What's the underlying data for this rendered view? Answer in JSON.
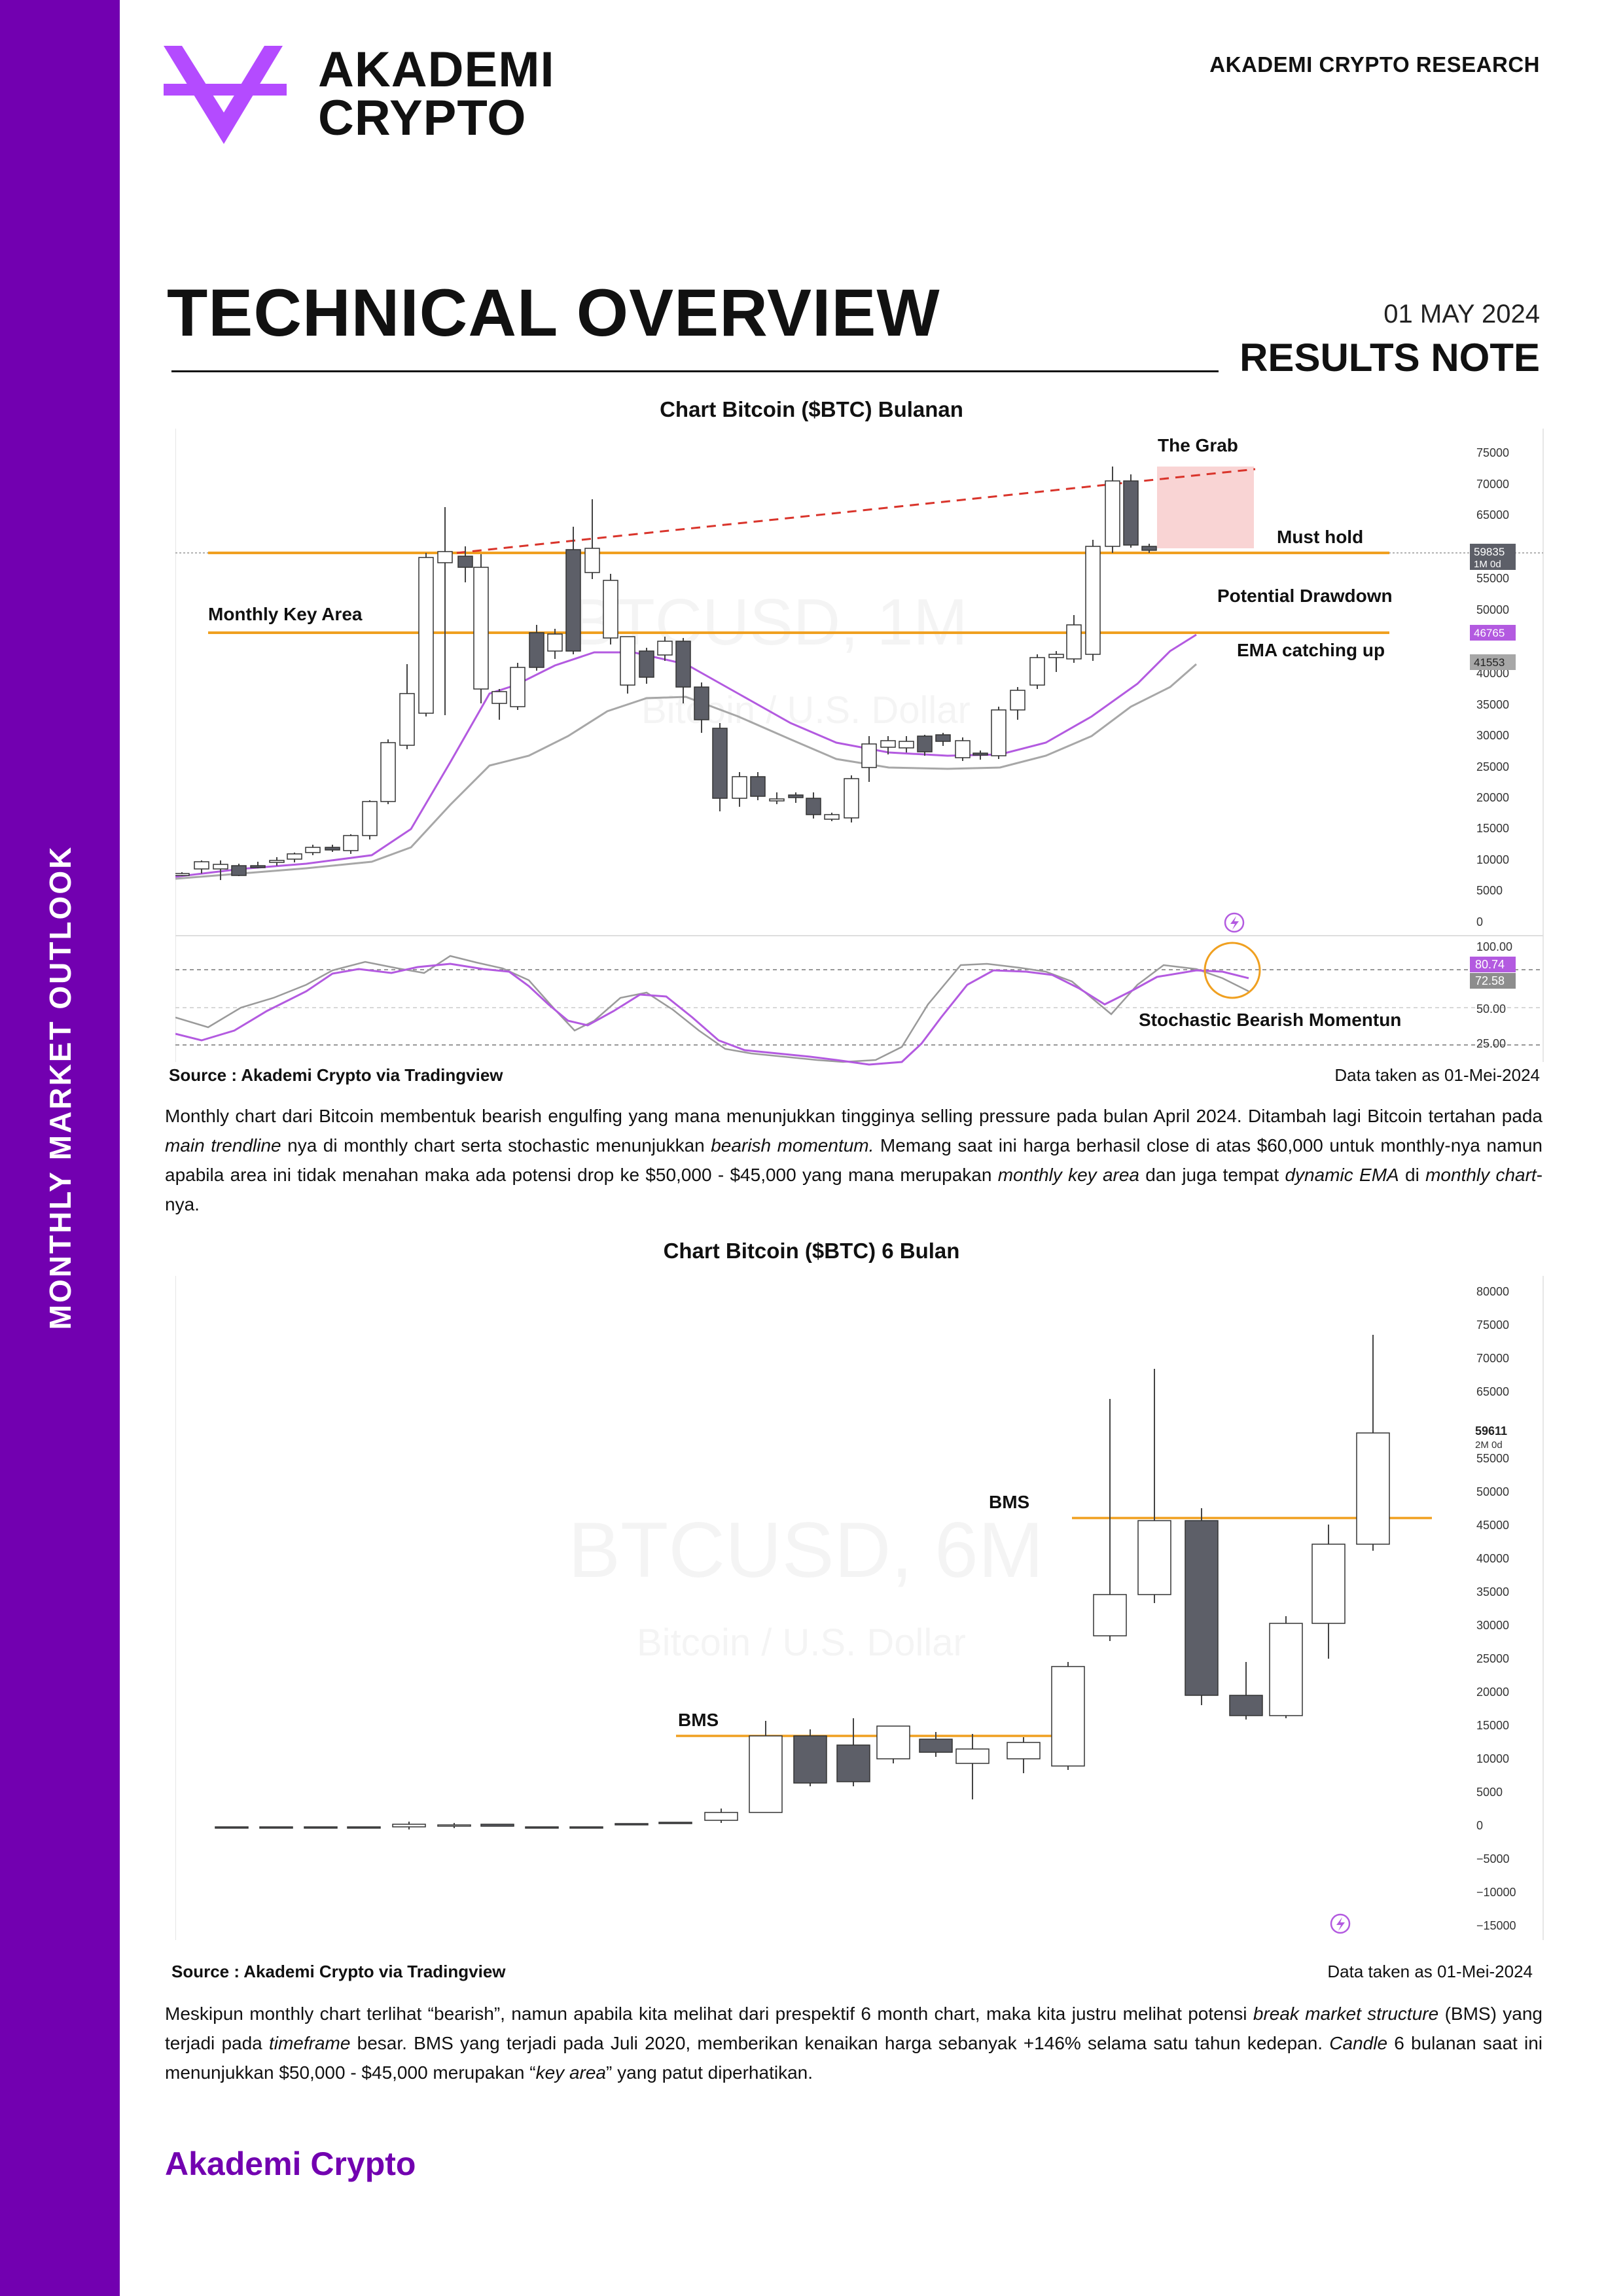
{
  "sidebar": {
    "label": "MONTHLY  MARKET OUTLOOK"
  },
  "brand": {
    "logo_line1": "AKADEMI",
    "logo_line2": "CRYPTO",
    "research": "AKADEMI CRYPTO RESEARCH",
    "footer": "Akademi Crypto"
  },
  "colors": {
    "sidebar": "#7200b0",
    "accent_orange": "#f0a020",
    "ema_purple": "#b35ae0",
    "candle_dark": "#5d5f68",
    "trend_red": "#d9342b"
  },
  "header": {
    "title": "TECHNICAL OVERVIEW",
    "date": "01 MAY 2024",
    "subtitle": "RESULTS NOTE"
  },
  "chart1": {
    "caption": "Chart Bitcoin ($BTC) Bulanan",
    "watermark_main": "BTCUSD, 1M",
    "watermark_sub": "Bitcoin / U.S. Dollar",
    "ann_grab": "The Grab",
    "ann_must_hold": "Must hold",
    "ann_monthly_key": "Monthly Key Area",
    "ann_drawdown": "Potential Drawdown",
    "ann_ema": "EMA catching up",
    "ann_stoch": "Stochastic Bearish Momentun",
    "price_ticks": [
      "75000",
      "70000",
      "65000",
      "55000",
      "50000",
      "40000",
      "35000",
      "30000",
      "25000",
      "20000",
      "15000",
      "10000",
      "5000",
      "0"
    ],
    "price_label": "59835",
    "price_label_sub": "1M 0d",
    "ema_label": "46765",
    "ema2_label": "41553",
    "stoch_ticks": [
      "100.00",
      "50.00",
      "25.00"
    ],
    "stoch_label1": "80.74",
    "stoch_label2": "72.58",
    "source": "Source : Akademi Crypto via Tradingview",
    "data_taken": "Data taken as 01-Mei-2024"
  },
  "chart2": {
    "caption": "Chart Bitcoin ($BTC) 6 Bulan",
    "watermark_main": "BTCUSD, 6M",
    "watermark_sub": "Bitcoin / U.S. Dollar",
    "ann_bms_low": "BMS",
    "ann_bms_high": "BMS",
    "price_ticks": [
      "80000",
      "75000",
      "70000",
      "65000",
      "55000",
      "50000",
      "45000",
      "40000",
      "35000",
      "30000",
      "25000",
      "20000",
      "15000",
      "10000",
      "5000",
      "0",
      "−5000",
      "−10000",
      "−15000"
    ],
    "price_label": "59611",
    "price_label_sub": "2M 0d",
    "source": "Source : Akademi Crypto via Tradingview",
    "data_taken": "Data taken as 01-Mei-2024"
  },
  "para1": {
    "t1": "Monthly chart dari Bitcoin membentuk bearish engulfing yang mana menunjukkan tingginya selling pressure pada bulan April 2024. Ditambah lagi Bitcoin tertahan pada ",
    "i1": "main trendline",
    "t2": " nya di monthly chart serta stochastic menunjukkan ",
    "i2": "bearish momentum.",
    "t3": " Memang saat ini harga berhasil close di atas $60,000 untuk monthly-nya namun apabila area ini tidak menahan maka ada potensi drop ke $50,000 - $45,000 yang mana merupakan ",
    "i3": "monthly key area",
    "t4": " dan juga tempat ",
    "i4": "dynamic EMA",
    "t5": " di ",
    "i5": "monthly chart",
    "t6": "-nya."
  },
  "para2": {
    "t1": "Meskipun monthly chart terlihat “bearish”, namun apabila kita melihat dari prespektif 6 month chart, maka kita justru melihat potensi ",
    "i1": "break market structure",
    "t2": " (BMS) yang terjadi pada ",
    "i2": "timeframe",
    "t3": " besar. BMS yang terjadi pada Juli 2020, memberikan kenaikan harga sebanyak +146% selama satu tahun kedepan. ",
    "i3": "Candle",
    "t4": " 6 bulanan saat ini menunjukkan $50,000 - $45,000 merupakan “",
    "i4": "key area",
    "t5": "” yang patut diperhatikan."
  }
}
